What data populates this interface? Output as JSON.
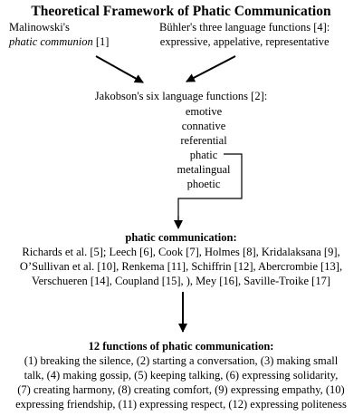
{
  "title": "Theoretical Framework of Phatic Communication",
  "malinowski": {
    "line1": "Malinowski's",
    "line2_italic": "phatic communion",
    "ref": " [1]"
  },
  "buhler": {
    "line1": "Bühler's three language functions [4]:",
    "line2": "expressive, appelative, representative"
  },
  "jakobson": {
    "heading": "Jakobson's six language functions [2]:",
    "functions": [
      "emotive",
      "connative",
      "referential",
      "phatic",
      "metalingual",
      "phoetic"
    ]
  },
  "phatic_communication": {
    "heading": "phatic communication:",
    "lines": [
      "Richards et al. [5]; Leech [6], Cook [7], Holmes [8], Kridalaksana [9],",
      "O’Sullivan et al. [10], Renkema [11], Schiffrin [12], Abercrombie [13],",
      "Verschueren [14], Coupland [15], ), Mey [16], Saville-Troike [17]"
    ]
  },
  "twelve_functions": {
    "heading": "12 functions of phatic communication:",
    "lines": [
      "(1) breaking the silence, (2) starting a conversation, (3) making small",
      "talk, (4) making gossip, (5) keeping talking, (6) expressing solidarity,",
      "(7) creating harmony, (8) creating comfort, (9) expressing empathy, (10)",
      "expressing friendship, (11) expressing respect, (12) expressing politeness"
    ]
  }
}
